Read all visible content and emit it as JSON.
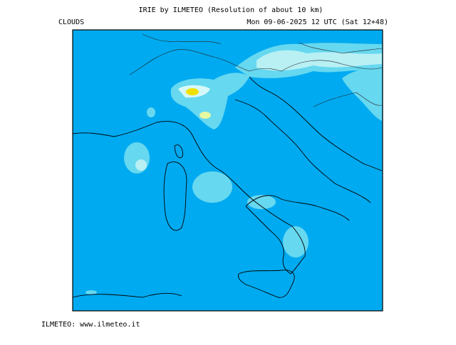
{
  "header": {
    "title": "IRIE by ILMETEO (Resolution of about 10 km)",
    "variable": "CLOUDS",
    "date": "Mon 09-06-2025 12 UTC (Sat 12+48)"
  },
  "footer": {
    "credit": "ILMETEO: www.ilmeteo.it"
  }
}
